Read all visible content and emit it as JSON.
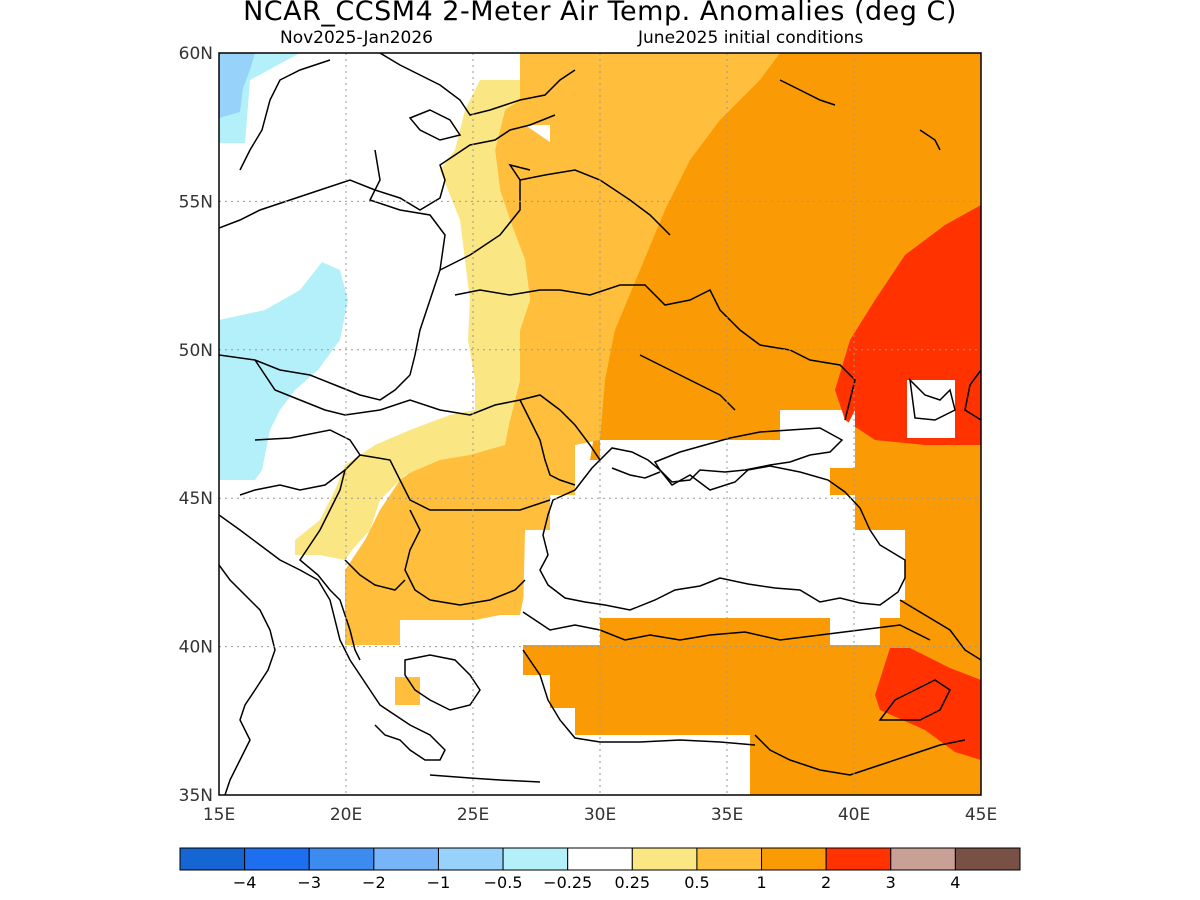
{
  "title": "NCAR_CCSM4 2-Meter Air Temp. Anomalies (deg C)",
  "subtitle_left": "Nov2025-Jan2026",
  "subtitle_right": "June2025 initial conditions",
  "map": {
    "lon_labels": [
      "15E",
      "20E",
      "25E",
      "30E",
      "35E",
      "40E",
      "45E"
    ],
    "lat_labels": [
      "35N",
      "40N",
      "45N",
      "50N",
      "55N",
      "60N"
    ],
    "lon_range": [
      15,
      45
    ],
    "lat_range": [
      35,
      60
    ],
    "grid": "dotted"
  },
  "colorbar": {
    "colors": [
      "#1565d3",
      "#1e6ff0",
      "#3c8cf0",
      "#78b4f8",
      "#96d2fa",
      "#b4f0fa",
      "#ffffff",
      "#fae682",
      "#ffbe3c",
      "#fa9b05",
      "#ff3200",
      "#c8a096",
      "#785046"
    ],
    "labels": [
      "-4",
      "-3",
      "-2",
      "-1",
      "-0.5",
      "-0.25",
      "0.25",
      "0.5",
      "1",
      "2",
      "3",
      "4"
    ]
  },
  "legend": {
    "cyan": "#b4f0fa",
    "blue": "#96d2fa",
    "yellow": "#fae682",
    "lightorange": "#ffbe3c",
    "orange": "#fa9b05",
    "red": "#ff3200"
  }
}
